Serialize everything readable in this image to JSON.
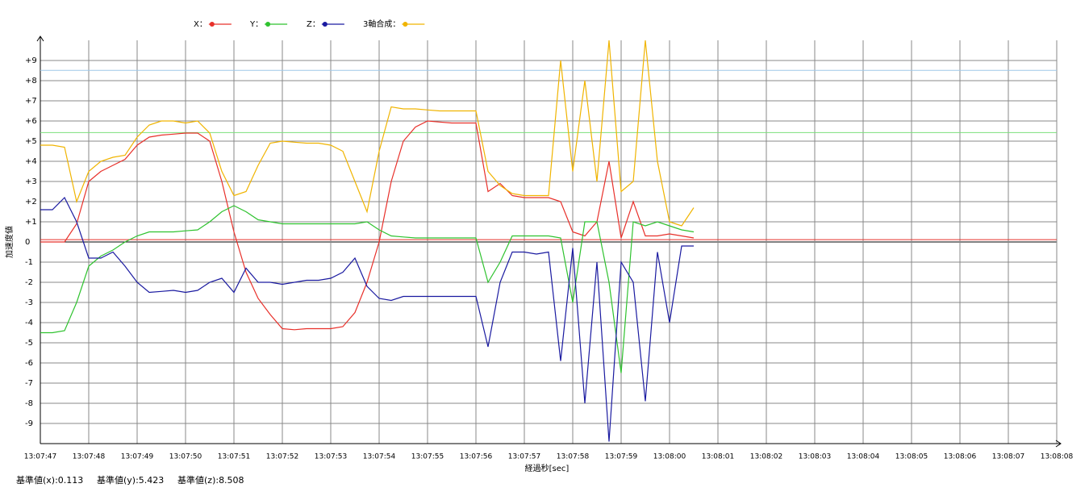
{
  "chart_data": {
    "type": "line",
    "y_label": "加速度値",
    "x_label": "経過秒[sec]",
    "xlim": [
      47267,
      47288
    ],
    "ylim": [
      -10,
      10
    ],
    "xticks": [
      {
        "value": 47267,
        "label": "13:07:47"
      },
      {
        "value": 47268,
        "label": "13:07:48"
      },
      {
        "value": 47269,
        "label": "13:07:49"
      },
      {
        "value": 47270,
        "label": "13:07:50"
      },
      {
        "value": 47271,
        "label": "13:07:51"
      },
      {
        "value": 47272,
        "label": "13:07:52"
      },
      {
        "value": 47273,
        "label": "13:07:53"
      },
      {
        "value": 47274,
        "label": "13:07:54"
      },
      {
        "value": 47275,
        "label": "13:07:55"
      },
      {
        "value": 47276,
        "label": "13:07:56"
      },
      {
        "value": 47277,
        "label": "13:07:57"
      },
      {
        "value": 47278,
        "label": "13:07:58"
      },
      {
        "value": 47279,
        "label": "13:07:59"
      },
      {
        "value": 47280,
        "label": "13:08:00"
      },
      {
        "value": 47281,
        "label": "13:08:01"
      },
      {
        "value": 47282,
        "label": "13:08:02"
      },
      {
        "value": 47283,
        "label": "13:08:03"
      },
      {
        "value": 47284,
        "label": "13:08:04"
      },
      {
        "value": 47285,
        "label": "13:08:05"
      },
      {
        "value": 47286,
        "label": "13:08:06"
      },
      {
        "value": 47287,
        "label": "13:08:07"
      },
      {
        "value": 47288,
        "label": "13:08:08"
      }
    ],
    "yticks": [
      {
        "value": 9,
        "label": "+9"
      },
      {
        "value": 8,
        "label": "+8"
      },
      {
        "value": 7,
        "label": "+7"
      },
      {
        "value": 6,
        "label": "+6"
      },
      {
        "value": 5,
        "label": "+5"
      },
      {
        "value": 4,
        "label": "+4"
      },
      {
        "value": 3,
        "label": "+3"
      },
      {
        "value": 2,
        "label": "+2"
      },
      {
        "value": 1,
        "label": "+1"
      },
      0,
      -1,
      -2,
      -3,
      -4,
      -5,
      -6,
      -7,
      -8,
      -9
    ],
    "grid": true,
    "x": [
      47267,
      47267.25,
      47267.5,
      47267.75,
      47268,
      47268.25,
      47268.5,
      47268.75,
      47269,
      47269.25,
      47269.5,
      47269.75,
      47270,
      47270.25,
      47270.5,
      47270.75,
      47271,
      47271.25,
      47271.5,
      47271.75,
      47272,
      47272.25,
      47272.5,
      47272.75,
      47273,
      47273.25,
      47273.5,
      47273.75,
      47274,
      47274.25,
      47274.5,
      47274.75,
      47275,
      47275.25,
      47275.5,
      47275.75,
      47276,
      47276.25,
      47276.5,
      47276.75,
      47277,
      47277.25,
      47277.5,
      47277.75,
      47278,
      47278.25,
      47278.5,
      47278.75,
      47279,
      47279.25,
      47279.5,
      47279.75,
      47280,
      47280.25,
      47280.5
    ],
    "series": [
      {
        "name": "X：",
        "color": "#e8302a",
        "values": [
          0,
          0,
          0,
          0.9,
          3.0,
          3.5,
          3.8,
          4.1,
          4.8,
          5.2,
          5.3,
          5.35,
          5.4,
          5.4,
          5.0,
          3.0,
          0.5,
          -1.5,
          -2.8,
          -3.6,
          -4.3,
          -4.35,
          -4.3,
          -4.3,
          -4.3,
          -4.2,
          -3.5,
          -2.0,
          0,
          3,
          5.0,
          5.7,
          6.0,
          5.95,
          5.9,
          5.9,
          5.9,
          2.5,
          2.9,
          2.3,
          2.2,
          2.2,
          2.2,
          2.0,
          0.5,
          0.3,
          1.0,
          4.0,
          0.2,
          2.0,
          0.3,
          0.3,
          0.4,
          0.3,
          0.2
        ]
      },
      {
        "name": "Y：",
        "color": "#2ec22e",
        "values": [
          -4.5,
          -4.5,
          -4.4,
          -3.0,
          -1.2,
          -0.7,
          -0.4,
          0,
          0.3,
          0.5,
          0.5,
          0.5,
          0.55,
          0.6,
          1.0,
          1.5,
          1.8,
          1.5,
          1.1,
          1.0,
          0.9,
          0.9,
          0.9,
          0.9,
          0.9,
          0.9,
          0.9,
          1.0,
          0.6,
          0.3,
          0.25,
          0.2,
          0.2,
          0.2,
          0.2,
          0.2,
          0.2,
          -2.0,
          -1.0,
          0.3,
          0.3,
          0.3,
          0.3,
          0.2,
          -3.0,
          1.0,
          1.0,
          -2.0,
          -6.5,
          1.0,
          0.8,
          1.0,
          0.8,
          0.6,
          0.5
        ]
      },
      {
        "name": "Z：",
        "color": "#1a1aa0",
        "values": [
          1.6,
          1.6,
          2.2,
          1.0,
          -0.8,
          -0.8,
          -0.5,
          -1.2,
          -2.0,
          -2.5,
          -2.45,
          -2.4,
          -2.5,
          -2.4,
          -2.0,
          -1.8,
          -2.5,
          -1.3,
          -2.0,
          -2.0,
          -2.1,
          -2.0,
          -1.9,
          -1.9,
          -1.8,
          -1.5,
          -0.8,
          -2.2,
          -2.8,
          -2.9,
          -2.7,
          -2.7,
          -2.7,
          -2.7,
          -2.7,
          -2.7,
          -2.7,
          -5.2,
          -2.0,
          -0.5,
          -0.5,
          -0.6,
          -0.5,
          -5.9,
          -0.3,
          -8.0,
          -1.0,
          -9.9,
          -1.0,
          -2.0,
          -7.9,
          -0.5,
          -4.0,
          -0.2,
          -0.2
        ]
      },
      {
        "name": "3軸合成：",
        "color": "#f0b400",
        "values": [
          4.8,
          4.8,
          4.7,
          2.0,
          3.5,
          4.0,
          4.2,
          4.3,
          5.2,
          5.8,
          6.0,
          6.0,
          5.9,
          6.0,
          5.4,
          3.5,
          2.3,
          2.5,
          3.8,
          4.9,
          5.0,
          4.95,
          4.9,
          4.9,
          4.8,
          4.5,
          3.0,
          1.5,
          4.5,
          6.7,
          6.6,
          6.6,
          6.55,
          6.5,
          6.5,
          6.5,
          6.5,
          3.5,
          2.8,
          2.4,
          2.3,
          2.3,
          2.3,
          9.0,
          3.5,
          8.0,
          3.0,
          10,
          2.5,
          3.0,
          10,
          4.0,
          1.0,
          0.8,
          1.7
        ]
      }
    ],
    "baselines": [
      {
        "label": "基準値(x):0.113",
        "value": 0.113,
        "color": "#e8302a"
      },
      {
        "label": "基準値(y):5.423",
        "value": 5.423,
        "color": "#7be07b"
      },
      {
        "label": "基準値(z):8.508",
        "value": 8.508,
        "color": "#9fc8e8"
      }
    ]
  }
}
